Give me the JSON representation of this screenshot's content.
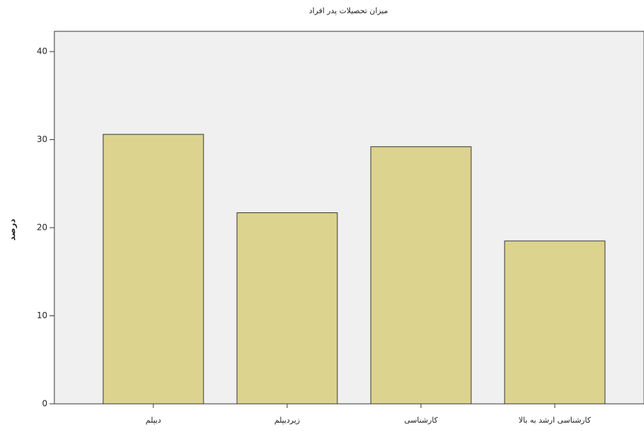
{
  "chart_data": {
    "type": "bar",
    "title": "میزان تحصیلات پدر افراد",
    "y_label": "درصد",
    "categories": [
      "دیپلم",
      "زیردیپلم",
      "کارشناسی",
      "کارشناسی ارشد به بالا"
    ],
    "values": [
      30.6,
      21.7,
      29.2,
      18.5
    ],
    "color": "#dcd38e",
    "ylim": [
      0,
      42.3
    ],
    "yticks": [
      0,
      10,
      20,
      30,
      40
    ],
    "grid": false
  }
}
